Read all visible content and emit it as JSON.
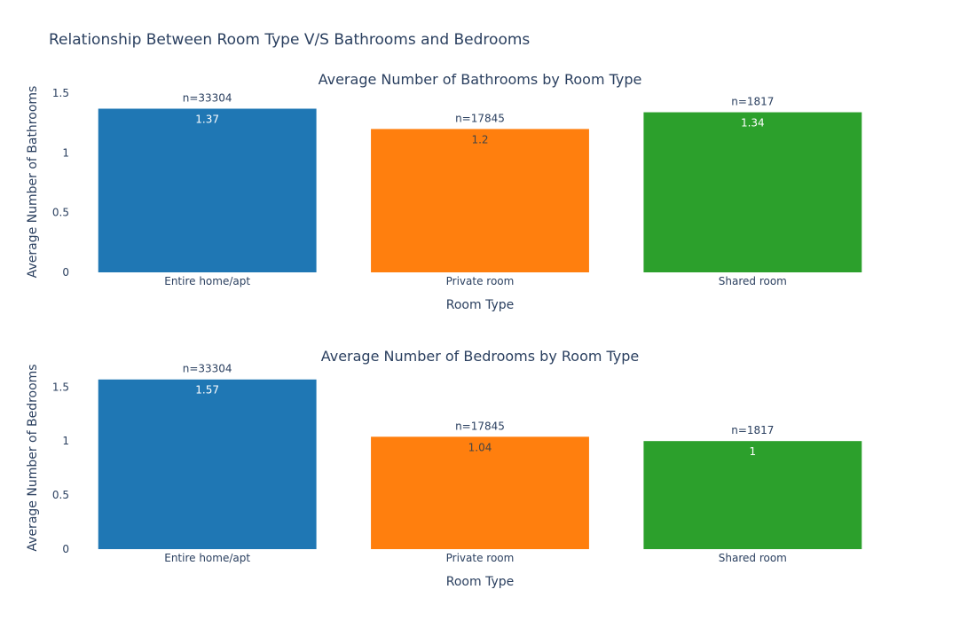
{
  "title": "Relationship Between Room Type V/S Bathrooms and Bedrooms",
  "chart_data": [
    {
      "type": "bar",
      "title": "Average Number of Bathrooms by Room Type",
      "xlabel": "Room Type",
      "ylabel": "Average Number of Bathrooms",
      "categories": [
        "Entire home/apt",
        "Private room",
        "Shared room"
      ],
      "values": [
        1.37,
        1.2,
        1.34
      ],
      "value_labels": [
        "1.37",
        "1.2",
        "1.34"
      ],
      "counts": [
        "n=33304",
        "n=17845",
        "n=1817"
      ],
      "colors": [
        "#1f77b4",
        "#ff7f0e",
        "#2ca02c"
      ],
      "value_label_colors": [
        "#ffffff",
        "#444444",
        "#ffffff"
      ],
      "ylim": [
        0,
        1.5
      ],
      "yticks": [
        0,
        0.5,
        1,
        1.5
      ],
      "ytick_labels": [
        "0",
        "0.5",
        "1",
        "1.5"
      ]
    },
    {
      "type": "bar",
      "title": "Average Number of Bedrooms by Room Type",
      "xlabel": "Room Type",
      "ylabel": "Average Number of Bedrooms",
      "categories": [
        "Entire home/apt",
        "Private room",
        "Shared room"
      ],
      "values": [
        1.57,
        1.04,
        1.0
      ],
      "value_labels": [
        "1.57",
        "1.04",
        "1"
      ],
      "counts": [
        "n=33304",
        "n=17845",
        "n=1817"
      ],
      "colors": [
        "#1f77b4",
        "#ff7f0e",
        "#2ca02c"
      ],
      "value_label_colors": [
        "#ffffff",
        "#444444",
        "#ffffff"
      ],
      "ylim": [
        0,
        1.65
      ],
      "yticks": [
        0,
        0.5,
        1,
        1.5
      ],
      "ytick_labels": [
        "0",
        "0.5",
        "1",
        "1.5"
      ]
    }
  ]
}
